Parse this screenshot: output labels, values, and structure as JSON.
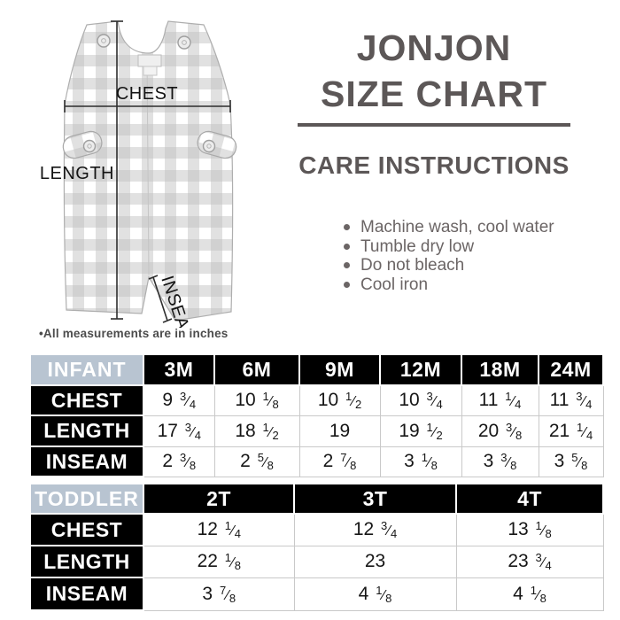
{
  "title": {
    "line1": "JONJON",
    "line2": "SIZE CHART"
  },
  "care": {
    "heading": "CARE INSTRUCTIONS",
    "items": [
      "Machine wash, cool water",
      "Tumble dry low",
      "Do not bleach",
      "Cool iron"
    ]
  },
  "diagram": {
    "labels": {
      "chest": "CHEST",
      "length": "LENGTH",
      "inseam": "INSEAM"
    }
  },
  "note": "•All measurements are in inches",
  "colors": {
    "accent": "#b8c4d1",
    "table_dark": "#000000",
    "heading": "#5c5757",
    "care_text": "#6b6565",
    "note_text": "#4c4c4c"
  },
  "tables": [
    {
      "name": "infant",
      "label": "INFANT",
      "columns": [
        "3M",
        "6M",
        "9M",
        "12M",
        "18M",
        "24M"
      ],
      "rows": [
        {
          "label": "CHEST",
          "values": [
            "9 3/4",
            "10 1/8",
            "10 1/2",
            "10 3/4",
            "11 1/4",
            "11 3/4"
          ]
        },
        {
          "label": "LENGTH",
          "values": [
            "17 3/4",
            "18 1/2",
            "19",
            "19 1/2",
            "20 3/8",
            "21 1/4"
          ]
        },
        {
          "label": "INSEAM",
          "values": [
            "2 3/8",
            "2 5/8",
            "2 7/8",
            "3 1/8",
            "3 3/8",
            "3 5/8"
          ]
        }
      ]
    },
    {
      "name": "toddler",
      "label": "TODDLER",
      "columns": [
        "2T",
        "3T",
        "4T"
      ],
      "rows": [
        {
          "label": "CHEST",
          "values": [
            "12 1/4",
            "12 3/4",
            "13 1/8"
          ]
        },
        {
          "label": "LENGTH",
          "values": [
            "22 1/8",
            "23",
            "23 3/4"
          ]
        },
        {
          "label": "INSEAM",
          "values": [
            "3 7/8",
            "4 1/8",
            "4 1/8"
          ]
        }
      ]
    }
  ]
}
